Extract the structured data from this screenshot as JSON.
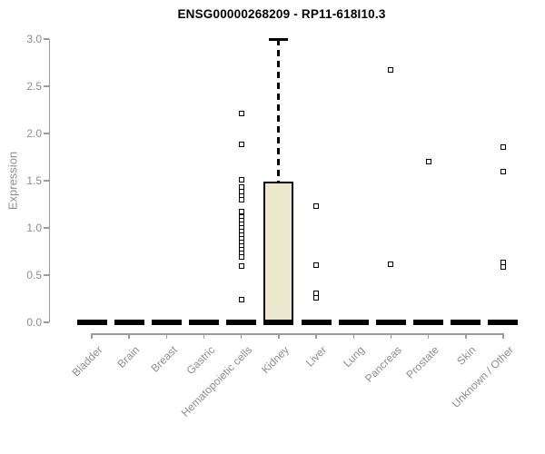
{
  "chart_data": {
    "type": "box",
    "title": "ENSG00000268209 - RP11-618I10.3",
    "ylabel": "Expression",
    "xlabel": "",
    "ylim": [
      0.0,
      3.0
    ],
    "yticks": [
      0.0,
      0.5,
      1.0,
      1.5,
      2.0,
      2.5,
      3.0
    ],
    "grid": false,
    "legend": "none",
    "categories": [
      "Bladder",
      "Brain",
      "Breast",
      "Gastric",
      "Hematopoietic cells",
      "Kidney",
      "Liver",
      "Lung",
      "Pancreas",
      "Prostate",
      "Skin",
      "Unknown / Other"
    ],
    "boxes": [
      {
        "category": "Bladder",
        "q1": 0,
        "median": 0,
        "q3": 0,
        "whisker_low": 0,
        "whisker_high": 0,
        "outliers": []
      },
      {
        "category": "Brain",
        "q1": 0,
        "median": 0,
        "q3": 0,
        "whisker_low": 0,
        "whisker_high": 0,
        "outliers": []
      },
      {
        "category": "Breast",
        "q1": 0,
        "median": 0,
        "q3": 0,
        "whisker_low": 0,
        "whisker_high": 0,
        "outliers": []
      },
      {
        "category": "Gastric",
        "q1": 0,
        "median": 0,
        "q3": 0,
        "whisker_low": 0,
        "whisker_high": 0,
        "outliers": []
      },
      {
        "category": "Hematopoietic cells",
        "q1": 0,
        "median": 0,
        "q3": 0,
        "whisker_low": 0,
        "whisker_high": 0,
        "outliers": [
          2.21,
          1.88,
          1.51,
          1.43,
          1.38,
          1.34,
          1.3,
          1.17,
          1.12,
          1.08,
          1.04,
          1.0,
          0.96,
          0.92,
          0.88,
          0.85,
          0.81,
          0.77,
          0.73,
          0.69,
          0.6,
          0.24
        ]
      },
      {
        "category": "Kidney",
        "q1": 0,
        "median": 0,
        "q3": 1.49,
        "whisker_low": 0,
        "whisker_high": 3.0,
        "outliers": []
      },
      {
        "category": "Liver",
        "q1": 0,
        "median": 0,
        "q3": 0,
        "whisker_low": 0,
        "whisker_high": 0,
        "outliers": [
          1.23,
          0.61,
          0.31,
          0.26
        ]
      },
      {
        "category": "Lung",
        "q1": 0,
        "median": 0,
        "q3": 0,
        "whisker_low": 0,
        "whisker_high": 0,
        "outliers": []
      },
      {
        "category": "Pancreas",
        "q1": 0,
        "median": 0,
        "q3": 0,
        "whisker_low": 0,
        "whisker_high": 0,
        "outliers": [
          2.67,
          0.62
        ]
      },
      {
        "category": "Prostate",
        "q1": 0,
        "median": 0,
        "q3": 0,
        "whisker_low": 0,
        "whisker_high": 0,
        "outliers": [
          1.7
        ]
      },
      {
        "category": "Skin",
        "q1": 0,
        "median": 0,
        "q3": 0,
        "whisker_low": 0,
        "whisker_high": 0,
        "outliers": []
      },
      {
        "category": "Unknown / Other",
        "q1": 0,
        "median": 0,
        "q3": 0,
        "whisker_low": 0,
        "whisker_high": 0,
        "outliers": [
          1.86,
          1.6,
          0.63,
          0.59
        ]
      }
    ],
    "colors": {
      "box_fill": "#ece8cd",
      "box_border": "#000000",
      "outlier": "#000000",
      "axis_line": "#9b9b9b",
      "axis_text": "#8e8e8e",
      "title_text": "#000000",
      "background": "#ffffff"
    }
  }
}
